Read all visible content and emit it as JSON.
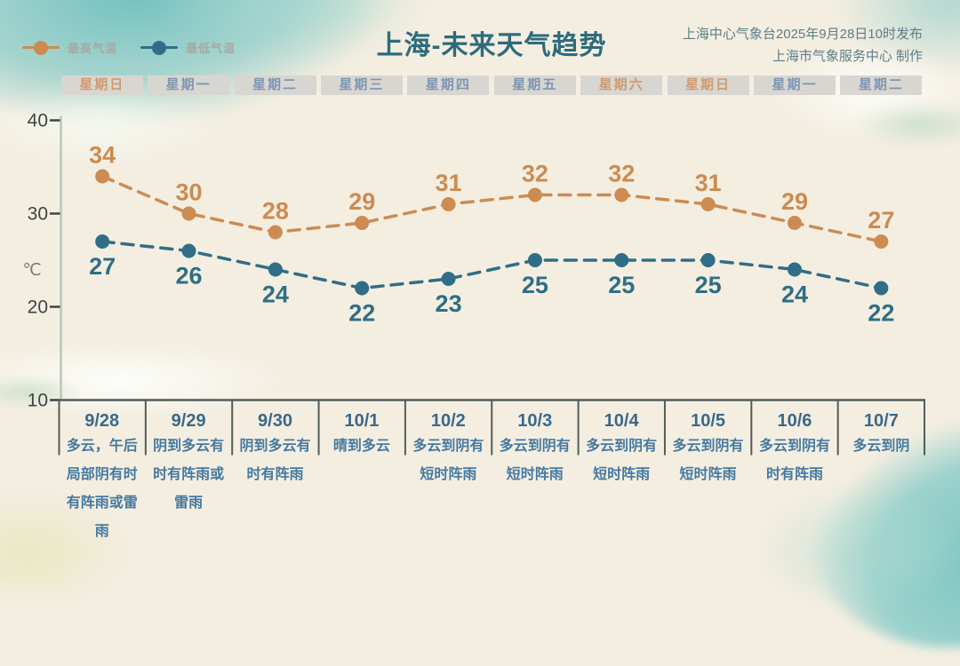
{
  "header": {
    "title": "上海-未来天气趋势",
    "publish_line1": "上海中心气象台2025年9月28日10时发布",
    "publish_line2": "上海市气象服务中心 制作"
  },
  "legend": {
    "high_label": "最高气温",
    "low_label": "最低气温"
  },
  "days": [
    {
      "weekday": "星期日",
      "weekend": true,
      "date": "9/28",
      "weather": "多云，午后局部阴有时有阵雨或雷雨"
    },
    {
      "weekday": "星期一",
      "weekend": false,
      "date": "9/29",
      "weather": "阴到多云有时有阵雨或雷雨"
    },
    {
      "weekday": "星期二",
      "weekend": false,
      "date": "9/30",
      "weather": "阴到多云有时有阵雨"
    },
    {
      "weekday": "星期三",
      "weekend": false,
      "date": "10/1",
      "weather": "晴到多云"
    },
    {
      "weekday": "星期四",
      "weekend": false,
      "date": "10/2",
      "weather": "多云到阴有短时阵雨"
    },
    {
      "weekday": "星期五",
      "weekend": false,
      "date": "10/3",
      "weather": "多云到阴有短时阵雨"
    },
    {
      "weekday": "星期六",
      "weekend": true,
      "date": "10/4",
      "weather": "多云到阴有短时阵雨"
    },
    {
      "weekday": "星期日",
      "weekend": true,
      "date": "10/5",
      "weather": "多云到阴有短时阵雨"
    },
    {
      "weekday": "星期一",
      "weekend": false,
      "date": "10/6",
      "weather": "多云到阴有时有阵雨"
    },
    {
      "weekday": "星期二",
      "weekend": false,
      "date": "10/7",
      "weather": "多云到阴"
    }
  ],
  "chart_data": {
    "type": "line",
    "title": "上海-未来天气趋势",
    "x": [
      "9/28",
      "9/29",
      "9/30",
      "10/1",
      "10/2",
      "10/3",
      "10/4",
      "10/5",
      "10/6",
      "10/7"
    ],
    "series": [
      {
        "name": "最高气温",
        "color": "#cc8b51",
        "label_position": "above",
        "values": [
          34,
          30,
          28,
          29,
          31,
          32,
          32,
          31,
          29,
          27
        ]
      },
      {
        "name": "最低气温",
        "color": "#2f6e86",
        "label_position": "below",
        "values": [
          27,
          26,
          24,
          22,
          23,
          25,
          25,
          25,
          24,
          22
        ]
      }
    ],
    "ylabel": "℃",
    "ylim": [
      10,
      40
    ],
    "yticks": [
      40,
      30,
      20,
      10
    ],
    "grid": false,
    "line_style": "dashed",
    "legend_position": "top-left"
  },
  "colors": {
    "background": "#f4eee1",
    "high_series": "#cc8b51",
    "low_series": "#2f6e86",
    "title": "#2d6b7d",
    "weekend_label": "#cf9a71",
    "weekday_label": "#7e95b2",
    "axis_line": "#b9c6bd",
    "axis_text": "#3d4542",
    "table_line": "#515d59",
    "date_text": "#3b688b",
    "weather_text": "#4579a0"
  }
}
